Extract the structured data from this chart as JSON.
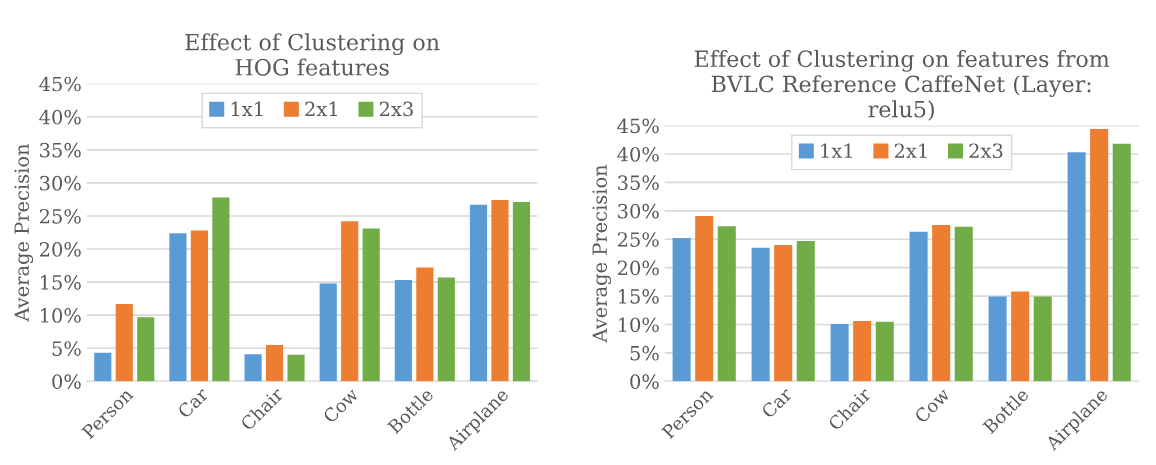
{
  "chart_data": [
    {
      "type": "bar",
      "title": "Effect of Clustering on\nHOG features",
      "ylabel": "Average Precision",
      "categories": [
        "Person",
        "Car",
        "Chair",
        "Cow",
        "Bottle",
        "Airplane"
      ],
      "series": [
        {
          "name": "1x1",
          "color": "#5b9bd5",
          "values": [
            4.3,
            22.4,
            4.1,
            14.8,
            15.3,
            26.7
          ]
        },
        {
          "name": "2x1",
          "color": "#ed7d31",
          "values": [
            11.7,
            22.8,
            5.5,
            24.2,
            17.2,
            27.4
          ]
        },
        {
          "name": "2x3",
          "color": "#70ad47",
          "values": [
            9.7,
            27.8,
            4.0,
            23.1,
            15.7,
            27.1
          ]
        }
      ],
      "ylim": [
        0,
        45
      ],
      "yticks": [
        {
          "value": 0,
          "label": "0%"
        },
        {
          "value": 5,
          "label": "5%"
        },
        {
          "value": 10,
          "label": "10%"
        },
        {
          "value": 15,
          "label": "15%"
        },
        {
          "value": 20,
          "label": "20%"
        },
        {
          "value": 25,
          "label": "25%"
        },
        {
          "value": 30,
          "label": "30%"
        },
        {
          "value": 35,
          "label": "35%"
        },
        {
          "value": 40,
          "label": "40%"
        },
        {
          "value": 45,
          "label": "45%"
        }
      ],
      "grid": "y",
      "legend": "top"
    },
    {
      "type": "bar",
      "title": "Effect of Clustering on features from\nBVLC Reference CaffeNet (Layer:\nrelu5)",
      "ylabel": "Average Precision",
      "categories": [
        "Person",
        "Car",
        "Chair",
        "Cow",
        "Bottle",
        "Airplane"
      ],
      "series": [
        {
          "name": "1x1",
          "color": "#5b9bd5",
          "values": [
            25.2,
            23.5,
            10.1,
            26.3,
            14.9,
            40.3
          ]
        },
        {
          "name": "2x1",
          "color": "#ed7d31",
          "values": [
            29.1,
            24.0,
            10.6,
            27.5,
            15.8,
            44.4
          ]
        },
        {
          "name": "2x3",
          "color": "#70ad47",
          "values": [
            27.3,
            24.7,
            10.5,
            27.2,
            14.9,
            41.8
          ]
        }
      ],
      "ylim": [
        0,
        45
      ],
      "yticks": [
        {
          "value": 0,
          "label": "0%"
        },
        {
          "value": 5,
          "label": "5%"
        },
        {
          "value": 10,
          "label": "10%"
        },
        {
          "value": 15,
          "label": "15%"
        },
        {
          "value": 20,
          "label": "20%"
        },
        {
          "value": 25,
          "label": "25%"
        },
        {
          "value": 30,
          "label": "30%"
        },
        {
          "value": 35,
          "label": "35%"
        },
        {
          "value": 40,
          "label": "40%"
        },
        {
          "value": 45,
          "label": "45%"
        }
      ],
      "grid": "y",
      "legend": "top"
    }
  ]
}
